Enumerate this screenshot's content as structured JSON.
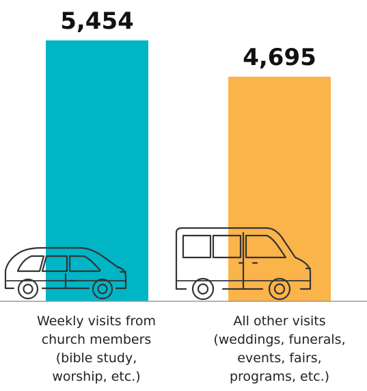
{
  "chart_data": {
    "type": "bar",
    "categories": [
      [
        "Weekly visits from",
        "church members",
        "(bible study,",
        "worship, etc.)"
      ],
      [
        "All other visits",
        "(weddings, funerals,",
        "events, fairs,",
        "programs, etc.)"
      ]
    ],
    "values": [
      5454,
      4695
    ],
    "value_labels": [
      "5,454",
      "4,695"
    ],
    "colors": [
      "#00B5C6",
      "#FBB44A"
    ],
    "icons": [
      "minivan-icon",
      "van-icon"
    ],
    "title": "",
    "xlabel": "",
    "ylabel": "",
    "ylim": [
      0,
      5454
    ],
    "grid": false,
    "legend": "none"
  }
}
